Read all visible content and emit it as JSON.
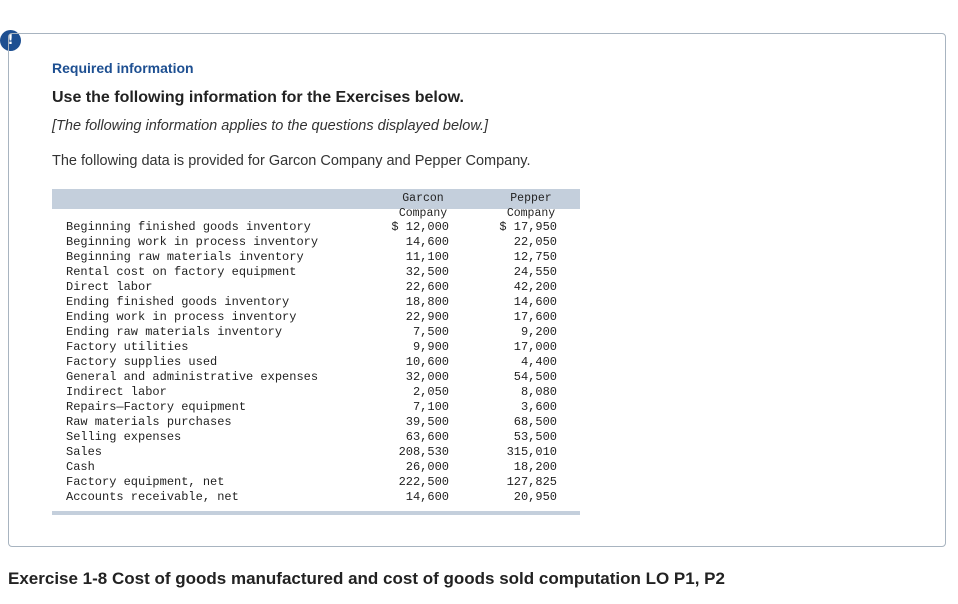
{
  "alert_icon_glyph": "!",
  "panel": {
    "required_title": "Required information",
    "headline": "Use the following information for the Exercises below.",
    "note": "[The following information applies to the questions displayed below.]",
    "intro": "The following data is provided for Garcon Company and Pepper Company."
  },
  "table": {
    "col_garcon": "Garcon\nCompany",
    "col_pepper": "Pepper\nCompany",
    "rows": [
      {
        "label": "Beginning finished goods inventory",
        "garcon": "$ 12,000",
        "pepper": "$ 17,950"
      },
      {
        "label": "Beginning work in process inventory",
        "garcon": "14,600",
        "pepper": "22,050"
      },
      {
        "label": "Beginning raw materials inventory",
        "garcon": "11,100",
        "pepper": "12,750"
      },
      {
        "label": "Rental cost on factory equipment",
        "garcon": "32,500",
        "pepper": "24,550"
      },
      {
        "label": "Direct labor",
        "garcon": "22,600",
        "pepper": "42,200"
      },
      {
        "label": "Ending finished goods inventory",
        "garcon": "18,800",
        "pepper": "14,600"
      },
      {
        "label": "Ending work in process inventory",
        "garcon": "22,900",
        "pepper": "17,600"
      },
      {
        "label": "Ending raw materials inventory",
        "garcon": "7,500",
        "pepper": "9,200"
      },
      {
        "label": "Factory utilities",
        "garcon": "9,900",
        "pepper": "17,000"
      },
      {
        "label": "Factory supplies used",
        "garcon": "10,600",
        "pepper": "4,400"
      },
      {
        "label": "General and administrative expenses",
        "garcon": "32,000",
        "pepper": "54,500"
      },
      {
        "label": "Indirect labor",
        "garcon": "2,050",
        "pepper": "8,080"
      },
      {
        "label": "Repairs—Factory equipment",
        "garcon": "7,100",
        "pepper": "3,600"
      },
      {
        "label": "Raw materials purchases",
        "garcon": "39,500",
        "pepper": "68,500"
      },
      {
        "label": "Selling expenses",
        "garcon": "63,600",
        "pepper": "53,500"
      },
      {
        "label": "Sales",
        "garcon": "208,530",
        "pepper": "315,010"
      },
      {
        "label": "Cash",
        "garcon": "26,000",
        "pepper": "18,200"
      },
      {
        "label": "Factory equipment, net",
        "garcon": "222,500",
        "pepper": "127,825"
      },
      {
        "label": "Accounts receivable, net",
        "garcon": "14,600",
        "pepper": "20,950"
      }
    ]
  },
  "exercise_title": "Exercise 1-8 Cost of goods manufactured and cost of goods sold computation LO P1, P2"
}
